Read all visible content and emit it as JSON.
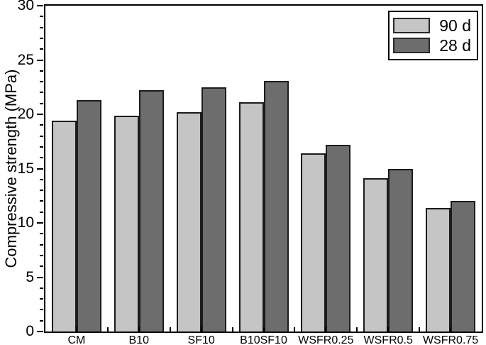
{
  "chart_data": {
    "type": "bar",
    "title": "",
    "xlabel": "",
    "ylabel": "Compressive strength (MPa)",
    "ylim": [
      0,
      30
    ],
    "y_major_tick_step": 5,
    "y_minor_tick_step": 1,
    "y_major_ticks": [
      0,
      5,
      10,
      15,
      20,
      25,
      30
    ],
    "grid": false,
    "legend_position": "top-right",
    "categories": [
      "CM",
      "B10",
      "SF10",
      "B10SF10",
      "WSFR0.25",
      "WSFR0.5",
      "WSFR0.75"
    ],
    "series": [
      {
        "name": "90 d",
        "color": "#c5c5c5",
        "values": [
          19.4,
          19.9,
          20.2,
          21.1,
          16.4,
          14.1,
          11.4
        ]
      },
      {
        "name": "28 d",
        "color": "#6d6d6d",
        "values": [
          21.3,
          22.2,
          22.5,
          23.1,
          17.2,
          15.0,
          12.0
        ]
      }
    ]
  },
  "colors": {
    "background": "#ffffff",
    "axis": "#000000",
    "bar_outline": "#1c1c1c",
    "text": "#000000"
  }
}
